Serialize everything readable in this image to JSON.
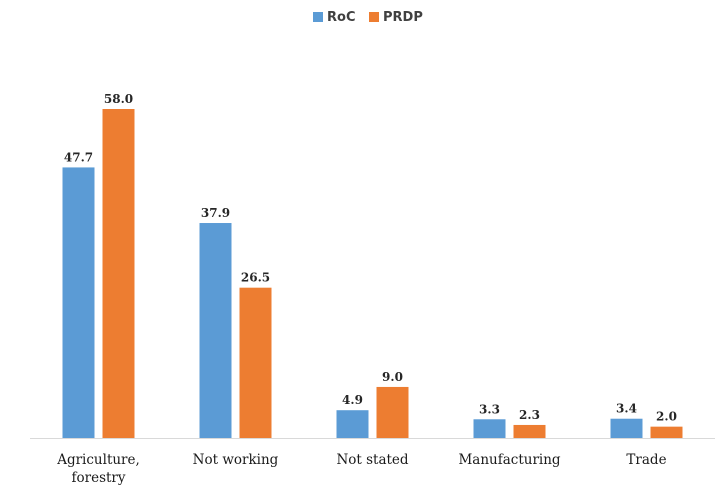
{
  "chart_data": {
    "type": "bar",
    "title": "",
    "xlabel": "",
    "ylabel": "",
    "categories": [
      [
        "Agriculture,",
        "forestry"
      ],
      [
        "Not working"
      ],
      [
        "Not stated"
      ],
      [
        "Manufacturing"
      ],
      [
        "Trade"
      ]
    ],
    "series": [
      {
        "name": "RoC",
        "color": "#5b9bd5",
        "values": [
          47.7,
          37.9,
          4.9,
          3.3,
          3.4
        ]
      },
      {
        "name": "PRDP",
        "color": "#ed7d31",
        "values": [
          58.0,
          26.5,
          9.0,
          2.3,
          2.0
        ]
      }
    ],
    "ylim": [
      0,
      58
    ],
    "grid": false,
    "legend_position": "top-center"
  }
}
